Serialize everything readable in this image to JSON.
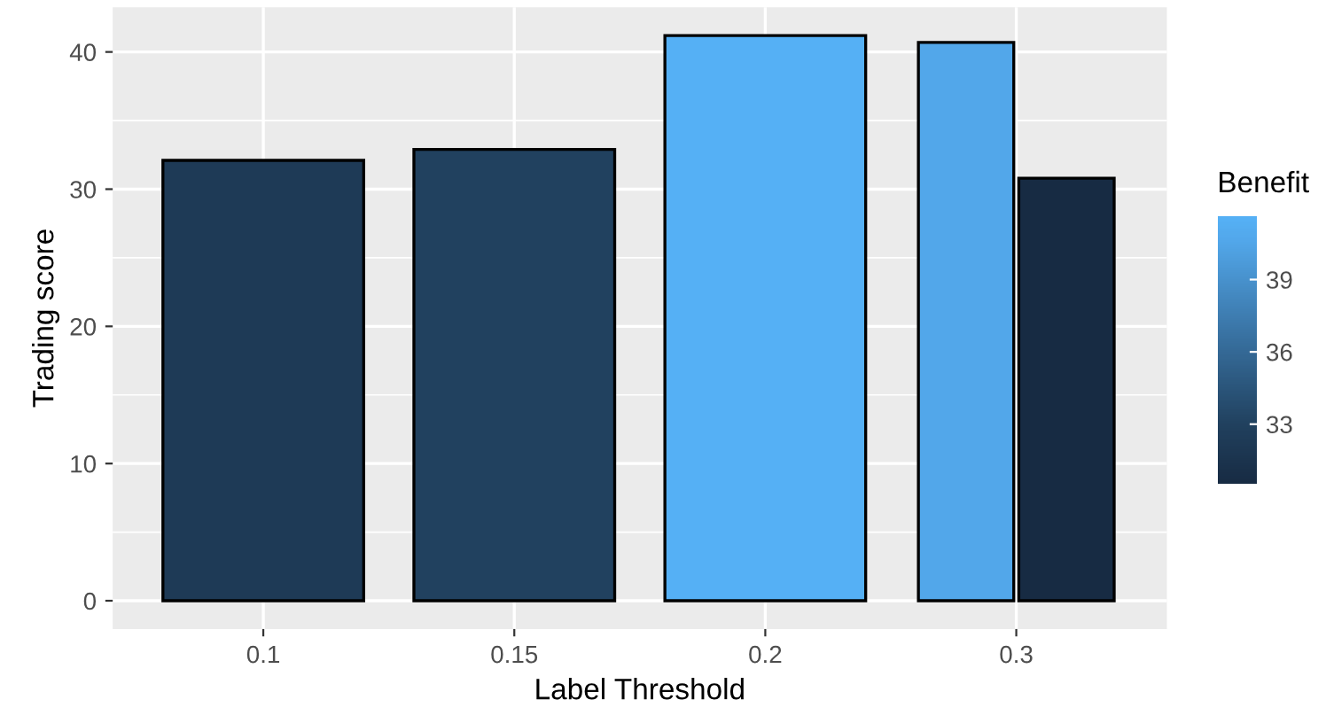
{
  "chart_data": {
    "type": "bar",
    "xlabel": "Label Threshold",
    "ylabel": "Trading score",
    "clabel": "Benefit",
    "categories": [
      "0.1",
      "0.15",
      "0.2",
      "0.3"
    ],
    "series": [
      {
        "values": [
          32.1,
          32.9,
          41.2,
          40.7
        ],
        "cvalues": [
          32.2,
          33.0,
          41.5,
          40.6
        ],
        "colors": [
          "#1e3a56",
          "#21415f",
          "#55b0f5",
          "#52a7ea"
        ]
      },
      {
        "values": [
          null,
          null,
          null,
          30.8
        ],
        "cvalues": [
          null,
          null,
          null,
          30.5
        ],
        "colors": [
          null,
          null,
          null,
          "#172b43"
        ]
      }
    ],
    "ylim": [
      -2.06,
      43.26
    ],
    "yticks": [
      0,
      10,
      20,
      30,
      40
    ],
    "clim": [
      30.5,
      41.6
    ],
    "cticks": [
      33,
      36,
      39
    ],
    "grid": true
  }
}
